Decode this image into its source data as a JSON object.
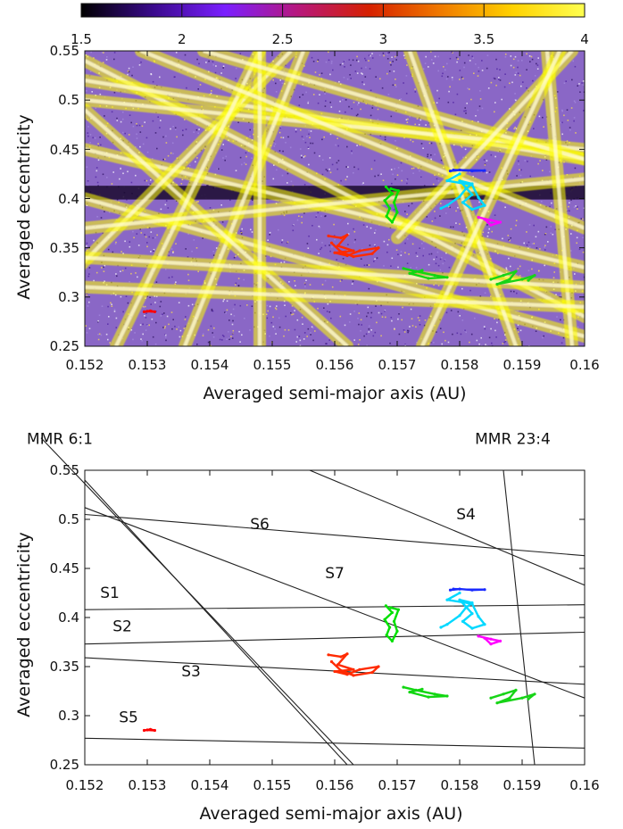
{
  "chart_data": [
    {
      "type": "heatmap",
      "xlabel": "Averaged semi-major axis (AU)",
      "ylabel": "Averaged eccentricity",
      "xlim": [
        0.152,
        0.16
      ],
      "ylim": [
        0.25,
        0.55
      ],
      "x_ticks": [
        "0.152",
        "0.153",
        "0.154",
        "0.155",
        "0.156",
        "0.157",
        "0.158",
        "0.159",
        "0.16"
      ],
      "y_ticks": [
        "0.25",
        "0.3",
        "0.35",
        "0.4",
        "0.45",
        "0.5",
        "0.55"
      ],
      "colorbar": {
        "range": [
          1.5,
          4
        ],
        "ticks": [
          "1.5",
          "2",
          "2.5",
          "3",
          "3.5",
          "4"
        ],
        "colors": [
          "#000000",
          "#3a0a8c",
          "#7a1fff",
          "#b6177e",
          "#d62000",
          "#f07a00",
          "#ffd200",
          "#ffff50"
        ],
        "location": "top"
      },
      "background": {
        "base_color": "#8a67c6",
        "resonance_color": "#ffff00",
        "dark_band": {
          "e_center": 0.406,
          "width": 0.014,
          "color": "#1a0a2e"
        },
        "resonance_lines": [
          {
            "a": [
              0.152,
              0.16
            ],
            "e": [
              0.54,
              0.28
            ]
          },
          {
            "a": [
              0.152,
              0.16
            ],
            "e": [
              0.52,
              0.44
            ]
          },
          {
            "a": [
              0.152,
              0.16
            ],
            "e": [
              0.45,
              0.33
            ]
          },
          {
            "a": [
              0.152,
              0.16
            ],
            "e": [
              0.5,
              0.45
            ]
          },
          {
            "a": [
              0.152,
              0.16
            ],
            "e": [
              0.4,
              0.26
            ]
          },
          {
            "a": [
              0.1536,
              0.1555
            ],
            "e": [
              0.25,
              0.55
            ]
          },
          {
            "a": [
              0.152,
              0.1562
            ],
            "e": [
              0.49,
              0.25
            ]
          },
          {
            "a": [
              0.1519,
              0.1553
            ],
            "e": [
              0.33,
              0.55
            ]
          },
          {
            "a": [
              0.1525,
              0.1548
            ],
            "e": [
              0.25,
              0.55
            ]
          },
          {
            "a": [
              0.1548,
              0.1548
            ],
            "e": [
              0.55,
              0.25
            ]
          },
          {
            "a": [
              0.152,
              0.16
            ],
            "e": [
              0.37,
              0.42
            ]
          },
          {
            "a": [
              0.1529,
              0.16
            ],
            "e": [
              0.55,
              0.37
            ]
          },
          {
            "a": [
              0.1539,
              0.16
            ],
            "e": [
              0.55,
              0.44
            ]
          },
          {
            "a": [
              0.1594,
              0.1598
            ],
            "e": [
              0.55,
              0.25
            ]
          },
          {
            "a": [
              0.1572,
              0.1589
            ],
            "e": [
              0.55,
              0.25
            ]
          },
          {
            "a": [
              0.157,
              0.1598
            ],
            "e": [
              0.36,
              0.55
            ]
          },
          {
            "a": [
              0.1596,
              0.1574
            ],
            "e": [
              0.55,
              0.25
            ]
          },
          {
            "a": [
              0.152,
              0.16
            ],
            "e": [
              0.31,
              0.29
            ]
          },
          {
            "a": [
              0.152,
              0.16
            ],
            "e": [
              0.34,
              0.31
            ]
          }
        ]
      },
      "series": [
        {
          "color": "#ff0000",
          "points": [
            [
              0.15295,
              0.285
            ],
            [
              0.15305,
              0.286
            ],
            [
              0.15312,
              0.285
            ],
            [
              0.153,
              0.2855
            ]
          ]
        },
        {
          "color": "#ff2a00",
          "points": [
            [
              0.1559,
              0.362
            ],
            [
              0.1561,
              0.36
            ],
            [
              0.1562,
              0.363
            ],
            [
              0.15605,
              0.352
            ],
            [
              0.1563,
              0.347
            ],
            [
              0.156,
              0.345
            ],
            [
              0.1562,
              0.342
            ],
            [
              0.1564,
              0.347
            ],
            [
              0.1567,
              0.35
            ],
            [
              0.1566,
              0.344
            ],
            [
              0.1563,
              0.341
            ],
            [
              0.1561,
              0.346
            ],
            [
              0.15595,
              0.355
            ]
          ]
        },
        {
          "color": "#00e000",
          "points": [
            [
              0.15682,
              0.412
            ],
            [
              0.15692,
              0.405
            ],
            [
              0.1568,
              0.398
            ],
            [
              0.15688,
              0.39
            ],
            [
              0.15683,
              0.382
            ],
            [
              0.15692,
              0.376
            ],
            [
              0.157,
              0.386
            ],
            [
              0.15695,
              0.396
            ],
            [
              0.15702,
              0.408
            ],
            [
              0.1569,
              0.41
            ]
          ]
        },
        {
          "color": "#11d611",
          "points": [
            [
              0.1571,
              0.329
            ],
            [
              0.1573,
              0.326
            ],
            [
              0.1576,
              0.322
            ],
            [
              0.1578,
              0.32
            ],
            [
              0.1575,
              0.319
            ],
            [
              0.1572,
              0.324
            ],
            [
              0.1574,
              0.327
            ]
          ]
        },
        {
          "color": "#17d417",
          "points": [
            [
              0.1585,
              0.318
            ],
            [
              0.1587,
              0.322
            ],
            [
              0.1589,
              0.326
            ],
            [
              0.1588,
              0.318
            ],
            [
              0.1586,
              0.313
            ],
            [
              0.159,
              0.318
            ],
            [
              0.1592,
              0.322
            ],
            [
              0.1591,
              0.317
            ]
          ]
        },
        {
          "color": "#00d8ff",
          "points": [
            [
              0.1577,
              0.39
            ],
            [
              0.1578,
              0.393
            ],
            [
              0.158,
              0.402
            ],
            [
              0.1581,
              0.41
            ],
            [
              0.1582,
              0.415
            ],
            [
              0.158,
              0.418
            ],
            [
              0.1582,
              0.404
            ],
            [
              0.15805,
              0.396
            ],
            [
              0.1582,
              0.389
            ],
            [
              0.1584,
              0.393
            ],
            [
              0.1583,
              0.401
            ],
            [
              0.1582,
              0.414
            ],
            [
              0.1578,
              0.418
            ],
            [
              0.158,
              0.425
            ]
          ]
        },
        {
          "color": "#1a2bff",
          "points": [
            [
              0.15785,
              0.428
            ],
            [
              0.158,
              0.429
            ],
            [
              0.1582,
              0.428
            ],
            [
              0.1584,
              0.4285
            ],
            [
              0.1579,
              0.429
            ]
          ]
        },
        {
          "color": "#ff00ff",
          "points": [
            [
              0.1583,
              0.381
            ],
            [
              0.1585,
              0.378
            ],
            [
              0.15865,
              0.376
            ],
            [
              0.1585,
              0.373
            ],
            [
              0.1584,
              0.379
            ]
          ]
        }
      ]
    },
    {
      "type": "line",
      "xlabel": "Averaged semi-major axis (AU)",
      "ylabel": "Averaged eccentricity",
      "xlim": [
        0.152,
        0.16
      ],
      "ylim": [
        0.25,
        0.55
      ],
      "x_ticks": [
        "0.152",
        "0.153",
        "0.154",
        "0.155",
        "0.156",
        "0.157",
        "0.158",
        "0.159",
        "0.16"
      ],
      "y_ticks": [
        "0.25",
        "0.3",
        "0.35",
        "0.4",
        "0.45",
        "0.5",
        "0.55"
      ],
      "lines": [
        {
          "label": "MMR 6:1",
          "x": [
            0.1513,
            0.1563
          ],
          "y": [
            0.583,
            0.25
          ]
        },
        {
          "label": "MMR 23:4",
          "x": [
            0.1587,
            0.1592
          ],
          "y": [
            0.55,
            0.25
          ]
        },
        {
          "label": "S1",
          "x": [
            0.152,
            0.16
          ],
          "y": [
            0.408,
            0.413
          ]
        },
        {
          "label": "S2",
          "x": [
            0.152,
            0.16
          ],
          "y": [
            0.373,
            0.385
          ]
        },
        {
          "label": "S3",
          "x": [
            0.152,
            0.16
          ],
          "y": [
            0.359,
            0.332
          ]
        },
        {
          "label": "S4",
          "x": [
            0.1556,
            0.16
          ],
          "y": [
            0.55,
            0.433
          ]
        },
        {
          "label": "S5",
          "x": [
            0.152,
            0.16
          ],
          "y": [
            0.277,
            0.267
          ]
        },
        {
          "label": "S6",
          "x": [
            0.152,
            0.16
          ],
          "y": [
            0.505,
            0.463
          ]
        },
        {
          "label": "S7",
          "x": [
            0.152,
            0.16
          ],
          "y": [
            0.512,
            0.318
          ]
        },
        {
          "label": "",
          "x": [
            0.152,
            0.1562
          ],
          "y": [
            0.54,
            0.25
          ]
        }
      ],
      "line_labels": [
        {
          "text": "MMR 6:1",
          "a": 0.1516,
          "e": 0.577
        },
        {
          "text": "MMR 23:4",
          "a": 0.15885,
          "e": 0.577
        },
        {
          "text": "S1",
          "a": 0.1524,
          "e": 0.42
        },
        {
          "text": "S2",
          "a": 0.1526,
          "e": 0.386
        },
        {
          "text": "S3",
          "a": 0.1537,
          "e": 0.34
        },
        {
          "text": "S4",
          "a": 0.1581,
          "e": 0.5
        },
        {
          "text": "S5",
          "a": 0.1527,
          "e": 0.293
        },
        {
          "text": "S6",
          "a": 0.1548,
          "e": 0.49
        },
        {
          "text": "S7",
          "a": 0.156,
          "e": 0.44
        }
      ],
      "series": [
        {
          "color": "#ff0000",
          "points": [
            [
              0.15295,
              0.285
            ],
            [
              0.15305,
              0.286
            ],
            [
              0.15312,
              0.285
            ],
            [
              0.153,
              0.2855
            ]
          ]
        },
        {
          "color": "#ff2a00",
          "points": [
            [
              0.1559,
              0.362
            ],
            [
              0.1561,
              0.36
            ],
            [
              0.1562,
              0.363
            ],
            [
              0.15605,
              0.352
            ],
            [
              0.1563,
              0.347
            ],
            [
              0.156,
              0.345
            ],
            [
              0.1562,
              0.342
            ],
            [
              0.1564,
              0.347
            ],
            [
              0.1567,
              0.35
            ],
            [
              0.1566,
              0.344
            ],
            [
              0.1563,
              0.341
            ],
            [
              0.1561,
              0.346
            ],
            [
              0.15595,
              0.355
            ]
          ]
        },
        {
          "color": "#00e000",
          "points": [
            [
              0.15682,
              0.412
            ],
            [
              0.15692,
              0.405
            ],
            [
              0.1568,
              0.398
            ],
            [
              0.15688,
              0.39
            ],
            [
              0.15683,
              0.382
            ],
            [
              0.15692,
              0.376
            ],
            [
              0.157,
              0.386
            ],
            [
              0.15695,
              0.396
            ],
            [
              0.15702,
              0.408
            ],
            [
              0.1569,
              0.41
            ]
          ]
        },
        {
          "color": "#11d611",
          "points": [
            [
              0.1571,
              0.329
            ],
            [
              0.1573,
              0.326
            ],
            [
              0.1576,
              0.322
            ],
            [
              0.1578,
              0.32
            ],
            [
              0.1575,
              0.319
            ],
            [
              0.1572,
              0.324
            ],
            [
              0.1574,
              0.327
            ]
          ]
        },
        {
          "color": "#17d417",
          "points": [
            [
              0.1585,
              0.318
            ],
            [
              0.1587,
              0.322
            ],
            [
              0.1589,
              0.326
            ],
            [
              0.1588,
              0.318
            ],
            [
              0.1586,
              0.313
            ],
            [
              0.159,
              0.318
            ],
            [
              0.1592,
              0.322
            ],
            [
              0.1591,
              0.317
            ]
          ]
        },
        {
          "color": "#00d8ff",
          "points": [
            [
              0.1577,
              0.39
            ],
            [
              0.1578,
              0.393
            ],
            [
              0.158,
              0.402
            ],
            [
              0.1581,
              0.41
            ],
            [
              0.1582,
              0.415
            ],
            [
              0.158,
              0.418
            ],
            [
              0.1582,
              0.404
            ],
            [
              0.15805,
              0.396
            ],
            [
              0.1582,
              0.389
            ],
            [
              0.1584,
              0.393
            ],
            [
              0.1583,
              0.401
            ],
            [
              0.1582,
              0.414
            ],
            [
              0.1578,
              0.418
            ],
            [
              0.158,
              0.425
            ]
          ]
        },
        {
          "color": "#1a2bff",
          "points": [
            [
              0.15785,
              0.428
            ],
            [
              0.158,
              0.429
            ],
            [
              0.1582,
              0.428
            ],
            [
              0.1584,
              0.4285
            ],
            [
              0.1579,
              0.429
            ]
          ]
        },
        {
          "color": "#ff00ff",
          "points": [
            [
              0.1583,
              0.381
            ],
            [
              0.1585,
              0.378
            ],
            [
              0.15865,
              0.376
            ],
            [
              0.1585,
              0.373
            ],
            [
              0.1584,
              0.379
            ]
          ]
        }
      ]
    }
  ]
}
